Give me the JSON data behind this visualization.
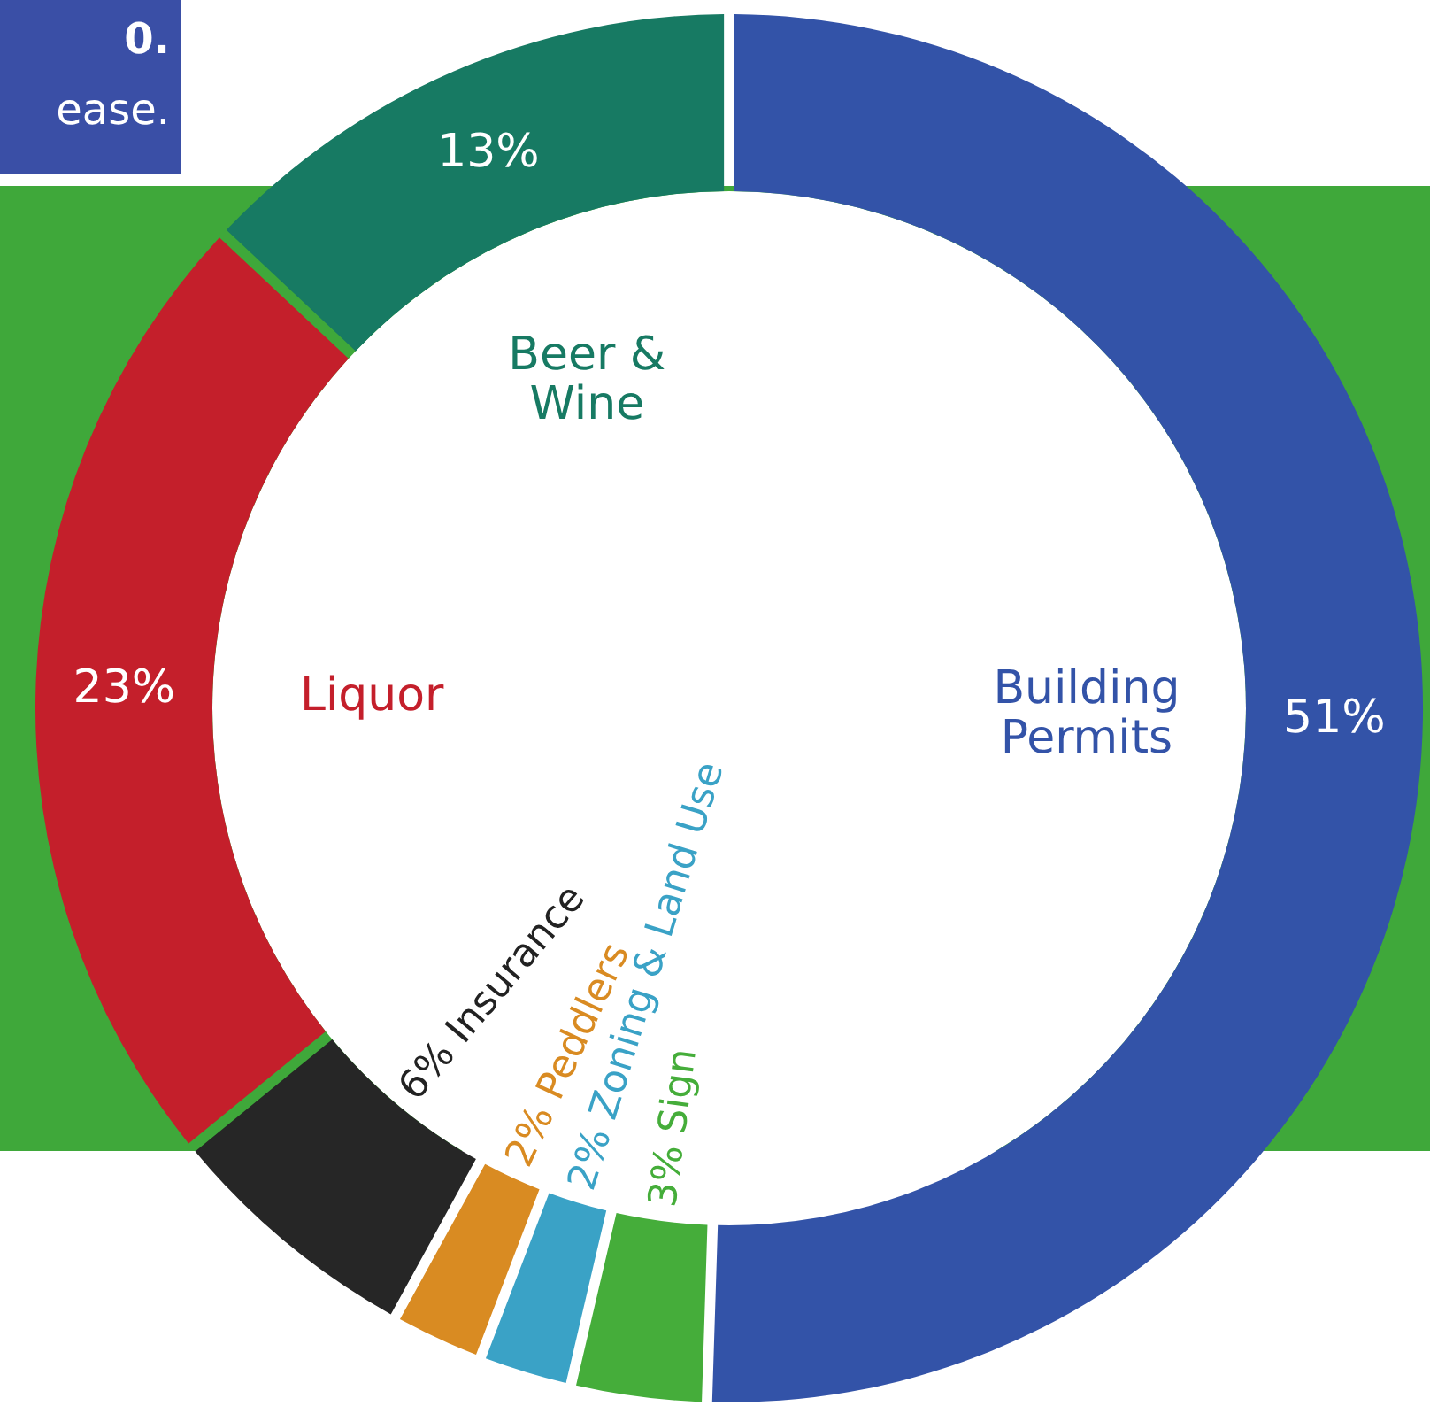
{
  "chart_data": {
    "type": "donut",
    "categories": [
      "Building Permits",
      "Sign",
      "Zoning & Land Use",
      "Peddlers",
      "Insurance",
      "Liquor",
      "Beer & Wine"
    ],
    "values": [
      51,
      3,
      2,
      2,
      6,
      23,
      13
    ],
    "value_labels": [
      "51%",
      "3%",
      "2%",
      "2%",
      "6%",
      "23%",
      "13%"
    ],
    "colors": [
      "#3353a8",
      "#45ad3a",
      "#3aa2c6",
      "#d98b22",
      "#262626",
      "#c41f2b",
      "#177a63"
    ],
    "annotations": [
      "0.",
      "ease."
    ]
  }
}
